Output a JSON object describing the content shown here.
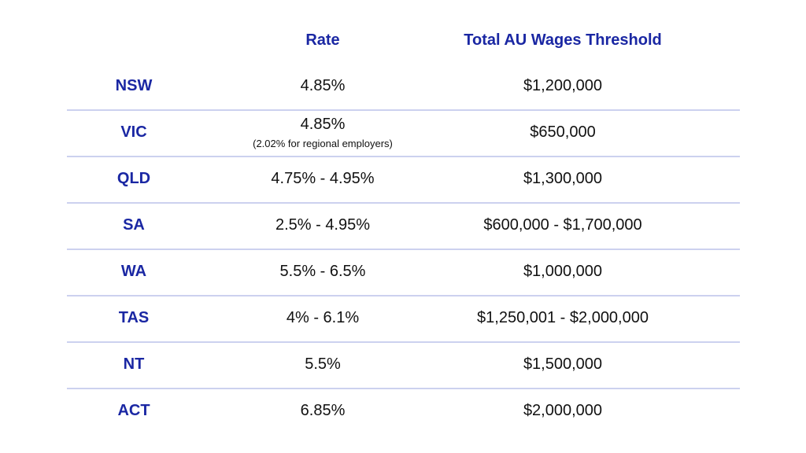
{
  "header": {
    "rate": "Rate",
    "threshold": "Total AU Wages Threshold"
  },
  "rows": [
    {
      "state": "NSW",
      "rate": "4.85%",
      "threshold": "$1,200,000"
    },
    {
      "state": "VIC",
      "rate": "4.85%",
      "note": "(2.02% for regional employers)",
      "threshold": "$650,000"
    },
    {
      "state": "QLD",
      "rate": "4.75% - 4.95%",
      "threshold": "$1,300,000"
    },
    {
      "state": "SA",
      "rate": "2.5% - 4.95%",
      "threshold": "$600,000 - $1,700,000"
    },
    {
      "state": "WA",
      "rate": "5.5% - 6.5%",
      "threshold": "$1,000,000"
    },
    {
      "state": "TAS",
      "rate": "4% - 6.1%",
      "threshold": "$1,250,001 - $2,000,000"
    },
    {
      "state": "NT",
      "rate": "5.5%",
      "threshold": "$1,500,000"
    },
    {
      "state": "ACT",
      "rate": "6.85%",
      "threshold": "$2,000,000"
    }
  ],
  "colors": {
    "heading": "#1a27a3",
    "divider": "#ccd1ef",
    "text": "#111111"
  }
}
